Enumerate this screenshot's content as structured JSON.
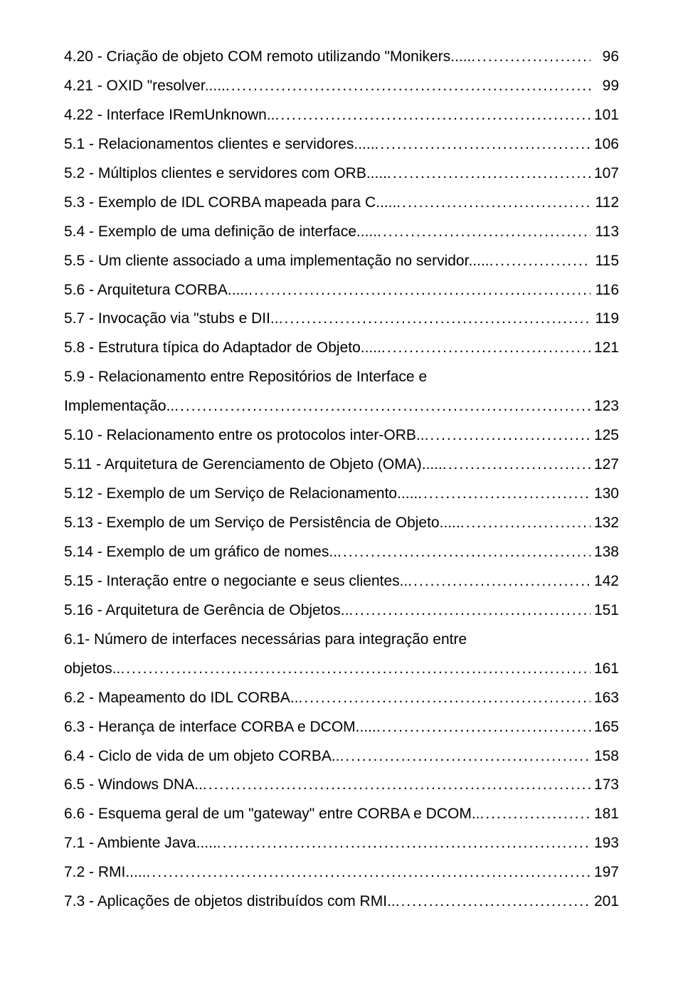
{
  "entries": [
    {
      "label": "4.20 - Criação de objeto COM remoto utilizando \"Monikers......",
      "page": "96"
    },
    {
      "label": "4.21 - OXID \"resolver......",
      "page": "99"
    },
    {
      "label": "4.22 - Interface IRemUnknown...",
      "page": "101"
    },
    {
      "label": "5.1 - Relacionamentos clientes e servidores......",
      "page": "106"
    },
    {
      "label": "5.2 -  Múltiplos clientes e servidores com ORB......",
      "page": "107"
    },
    {
      "label": "5.3 - Exemplo de IDL CORBA mapeada para C......",
      "page": "112"
    },
    {
      "label": "5.4 - Exemplo de uma definição de interface......",
      "page": "113"
    },
    {
      "label": "5.5 - Um cliente associado a uma implementação no servidor......",
      "page": "115"
    },
    {
      "label": "5.6 - Arquitetura CORBA......",
      "page": "116"
    },
    {
      "label": "5.7 - Invocação via \"stubs e DII...",
      "page": "119"
    },
    {
      "label": "5.8 - Estrutura típica do Adaptador de Objeto......",
      "page": "121"
    },
    {
      "label": "5.9 - Relacionamento entre Repositórios de Interface e",
      "cont": "Implementação...",
      "page": "123"
    },
    {
      "label": "5.10 - Relacionamento entre os protocolos inter-ORB...",
      "page": "125"
    },
    {
      "label": "5.11 - Arquitetura de Gerenciamento de Objeto (OMA)...... ",
      "page": "127"
    },
    {
      "label": "5.12 - Exemplo de um Serviço de Relacionamento...... ",
      "page": "130"
    },
    {
      "label": "5.13 - Exemplo de um Serviço de Persistência de Objeto......",
      "page": "132"
    },
    {
      "label": "5.14 - Exemplo de um gráfico de nomes...",
      "page": "138"
    },
    {
      "label": "5.15 - Interação entre o negociante e seus clientes...",
      "page": "142"
    },
    {
      "label": "5.16 - Arquitetura de Gerência de Objetos...",
      "page": "151"
    },
    {
      "label": "6.1- Número de interfaces necessárias para integração entre",
      "cont": "objetos...",
      "page": "161"
    },
    {
      "label": "6.2 - Mapeamento do IDL CORBA... ",
      "page": "163"
    },
    {
      "label": "6.3 - Herança de interface CORBA e DCOM...... ",
      "page": "165"
    },
    {
      "label": "6.4 - Ciclo de vida de um objeto CORBA... ",
      "page": "158"
    },
    {
      "label": "6.5 - Windows DNA... ",
      "page": "173"
    },
    {
      "label": "6.6 - Esquema geral de um \"gateway\" entre CORBA e DCOM... ",
      "page": "181"
    },
    {
      "label": "7.1 - Ambiente Java...... ",
      "page": "193"
    },
    {
      "label": "7.2 - RMI......",
      "page": "197"
    },
    {
      "label": "7.3 - Aplicações de objetos distribuídos com RMI...",
      "page": "201"
    }
  ]
}
